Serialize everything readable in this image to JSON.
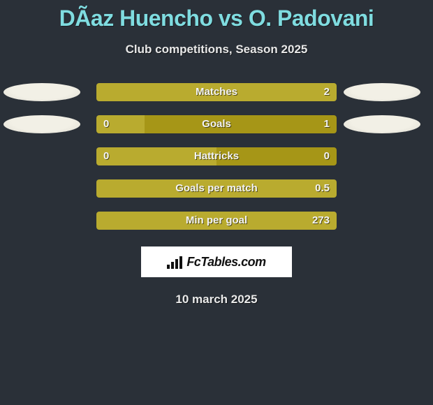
{
  "colors": {
    "background": "#2a3038",
    "title": "#7fdce0",
    "text": "#e8e8e8",
    "bar_text": "#f3f3f3",
    "ellipse_light": "#f2f0e6",
    "ellipse_dark": "#dcdad0",
    "olive": "#a69617",
    "olive_light": "#b9ab2f",
    "logo_bg": "#ffffff",
    "logo_fg": "#111111"
  },
  "title": "DÃ­az Huencho vs O. Padovani",
  "subtitle": "Club competitions, Season 2025",
  "date": "10 march 2025",
  "logo": {
    "text": "FcTables.com"
  },
  "stats": [
    {
      "label": "Matches",
      "left_value": "",
      "right_value": "2",
      "left_ellipse": true,
      "right_ellipse": true,
      "left_pct": 0,
      "right_pct": 100,
      "left_color": "#a69617",
      "right_color": "#b9ab2f"
    },
    {
      "label": "Goals",
      "left_value": "0",
      "right_value": "1",
      "left_ellipse": true,
      "right_ellipse": true,
      "left_pct": 20,
      "right_pct": 80,
      "left_color": "#b9ab2f",
      "right_color": "#a69617"
    },
    {
      "label": "Hattricks",
      "left_value": "0",
      "right_value": "0",
      "left_ellipse": false,
      "right_ellipse": false,
      "left_pct": 50,
      "right_pct": 50,
      "left_color": "#b9ab2f",
      "right_color": "#a69617"
    },
    {
      "label": "Goals per match",
      "left_value": "",
      "right_value": "0.5",
      "left_ellipse": false,
      "right_ellipse": false,
      "left_pct": 0,
      "right_pct": 100,
      "left_color": "#a69617",
      "right_color": "#b9ab2f"
    },
    {
      "label": "Min per goal",
      "left_value": "",
      "right_value": "273",
      "left_ellipse": false,
      "right_ellipse": false,
      "left_pct": 0,
      "right_pct": 100,
      "left_color": "#a69617",
      "right_color": "#b9ab2f"
    }
  ]
}
